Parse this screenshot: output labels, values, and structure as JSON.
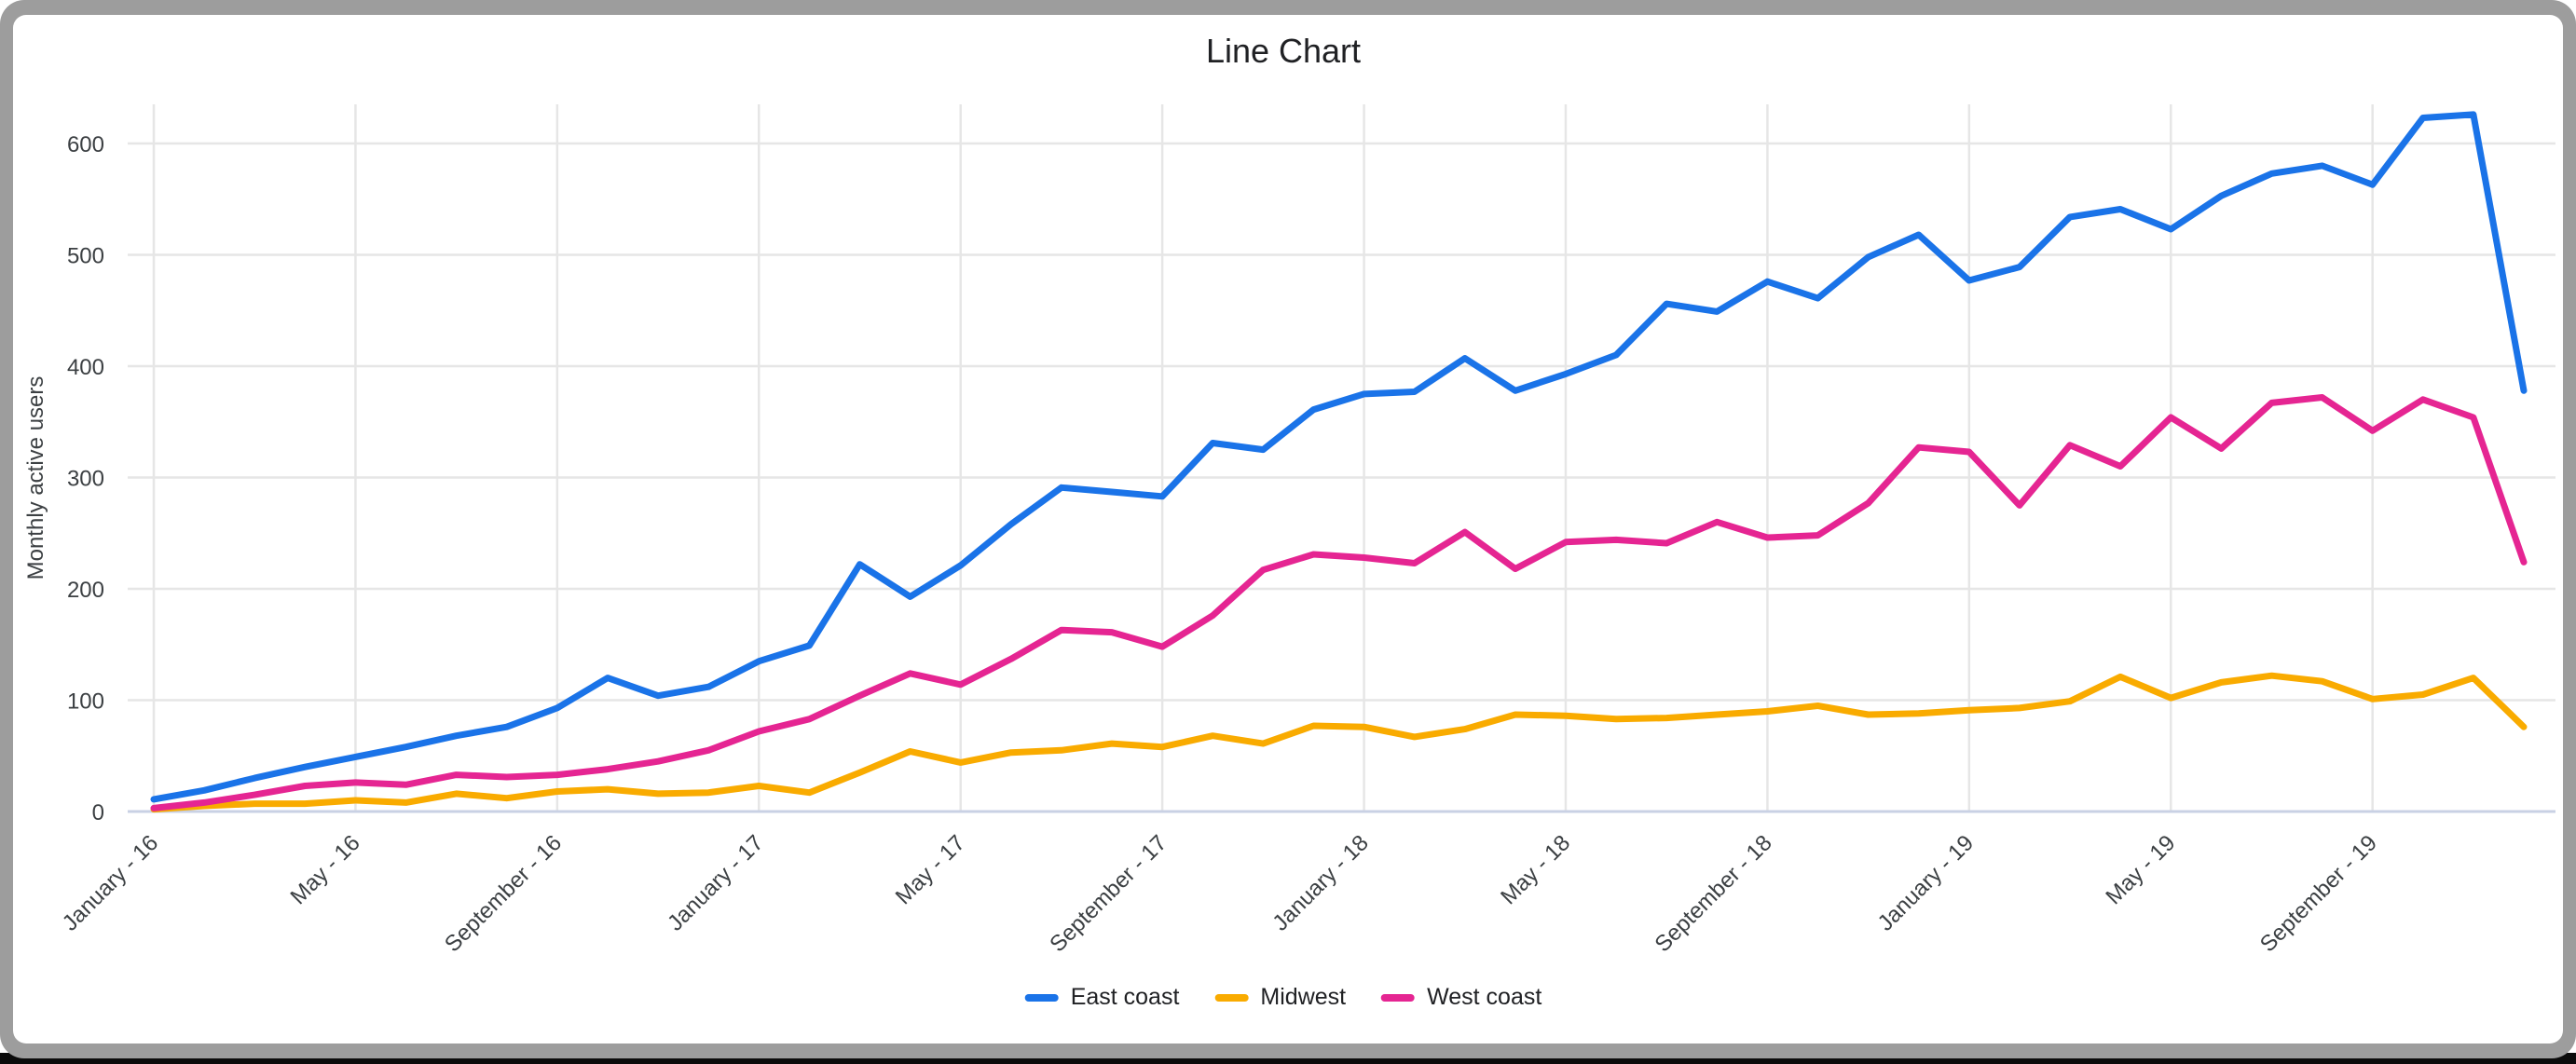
{
  "window": {
    "frame_color": "#9d9d9d",
    "bottom_strip_color": "#0b0b0b",
    "card_color": "#ffffff"
  },
  "chart_data": {
    "type": "line",
    "title": "Line Chart",
    "xlabel": "",
    "ylabel": "Monthly active users",
    "ylim": [
      0,
      600
    ],
    "yticks": [
      0,
      100,
      200,
      300,
      400,
      500,
      600
    ],
    "grid": true,
    "legend_position": "bottom",
    "x_tick_every": 4,
    "tick_labels": [
      "January - 16",
      "May - 16",
      "September - 16",
      "January - 17",
      "May - 17",
      "September - 17",
      "January - 18",
      "May - 18",
      "September - 18",
      "January - 19",
      "May - 19",
      "September - 19"
    ],
    "categories": [
      "January - 16",
      "February - 16",
      "March - 16",
      "April - 16",
      "May - 16",
      "June - 16",
      "July - 16",
      "August - 16",
      "September - 16",
      "October - 16",
      "November - 16",
      "December - 16",
      "January - 17",
      "February - 17",
      "March - 17",
      "April - 17",
      "May - 17",
      "June - 17",
      "July - 17",
      "August - 17",
      "September - 17",
      "October - 17",
      "November - 17",
      "December - 17",
      "January - 18",
      "February - 18",
      "March - 18",
      "April - 18",
      "May - 18",
      "June - 18",
      "July - 18",
      "August - 18",
      "September - 18",
      "October - 18",
      "November - 18",
      "December - 18",
      "January - 19",
      "February - 19",
      "March - 19",
      "April - 19",
      "May - 19",
      "June - 19",
      "July - 19",
      "August - 19",
      "September - 19",
      "October - 19",
      "November - 19",
      "December - 19"
    ],
    "series": [
      {
        "name": "East coast",
        "color": "#1a73e8",
        "values": [
          11,
          19,
          30,
          40,
          49,
          58,
          68,
          76,
          93,
          120,
          104,
          112,
          135,
          149,
          222,
          193,
          221,
          258,
          291,
          287,
          283,
          331,
          325,
          361,
          375,
          377,
          407,
          378,
          393,
          410,
          456,
          449,
          476,
          461,
          498,
          518,
          477,
          489,
          534,
          541,
          523,
          553,
          573,
          580,
          563,
          623,
          626,
          378
        ]
      },
      {
        "name": "Midwest",
        "color": "#f9ab00",
        "values": [
          2,
          5,
          7,
          7,
          10,
          8,
          16,
          12,
          18,
          20,
          16,
          17,
          23,
          17,
          35,
          54,
          44,
          53,
          55,
          61,
          58,
          68,
          61,
          77,
          76,
          67,
          74,
          87,
          86,
          83,
          84,
          87,
          90,
          95,
          87,
          88,
          91,
          93,
          99,
          121,
          102,
          116,
          122,
          117,
          101,
          105,
          120,
          76
        ]
      },
      {
        "name": "West coast",
        "color": "#e52592",
        "values": [
          3,
          8,
          15,
          23,
          26,
          24,
          33,
          31,
          33,
          38,
          45,
          55,
          72,
          83,
          104,
          124,
          114,
          137,
          163,
          161,
          148,
          176,
          217,
          231,
          228,
          223,
          251,
          218,
          242,
          244,
          241,
          260,
          246,
          248,
          277,
          327,
          323,
          275,
          329,
          310,
          354,
          326,
          367,
          372,
          342,
          370,
          354,
          224
        ]
      }
    ],
    "style": {
      "gridline_color": "#e6e6e6",
      "baseline_color": "#c9d1e4",
      "tick_text_color": "#3c4043",
      "title_color": "#202124"
    }
  }
}
